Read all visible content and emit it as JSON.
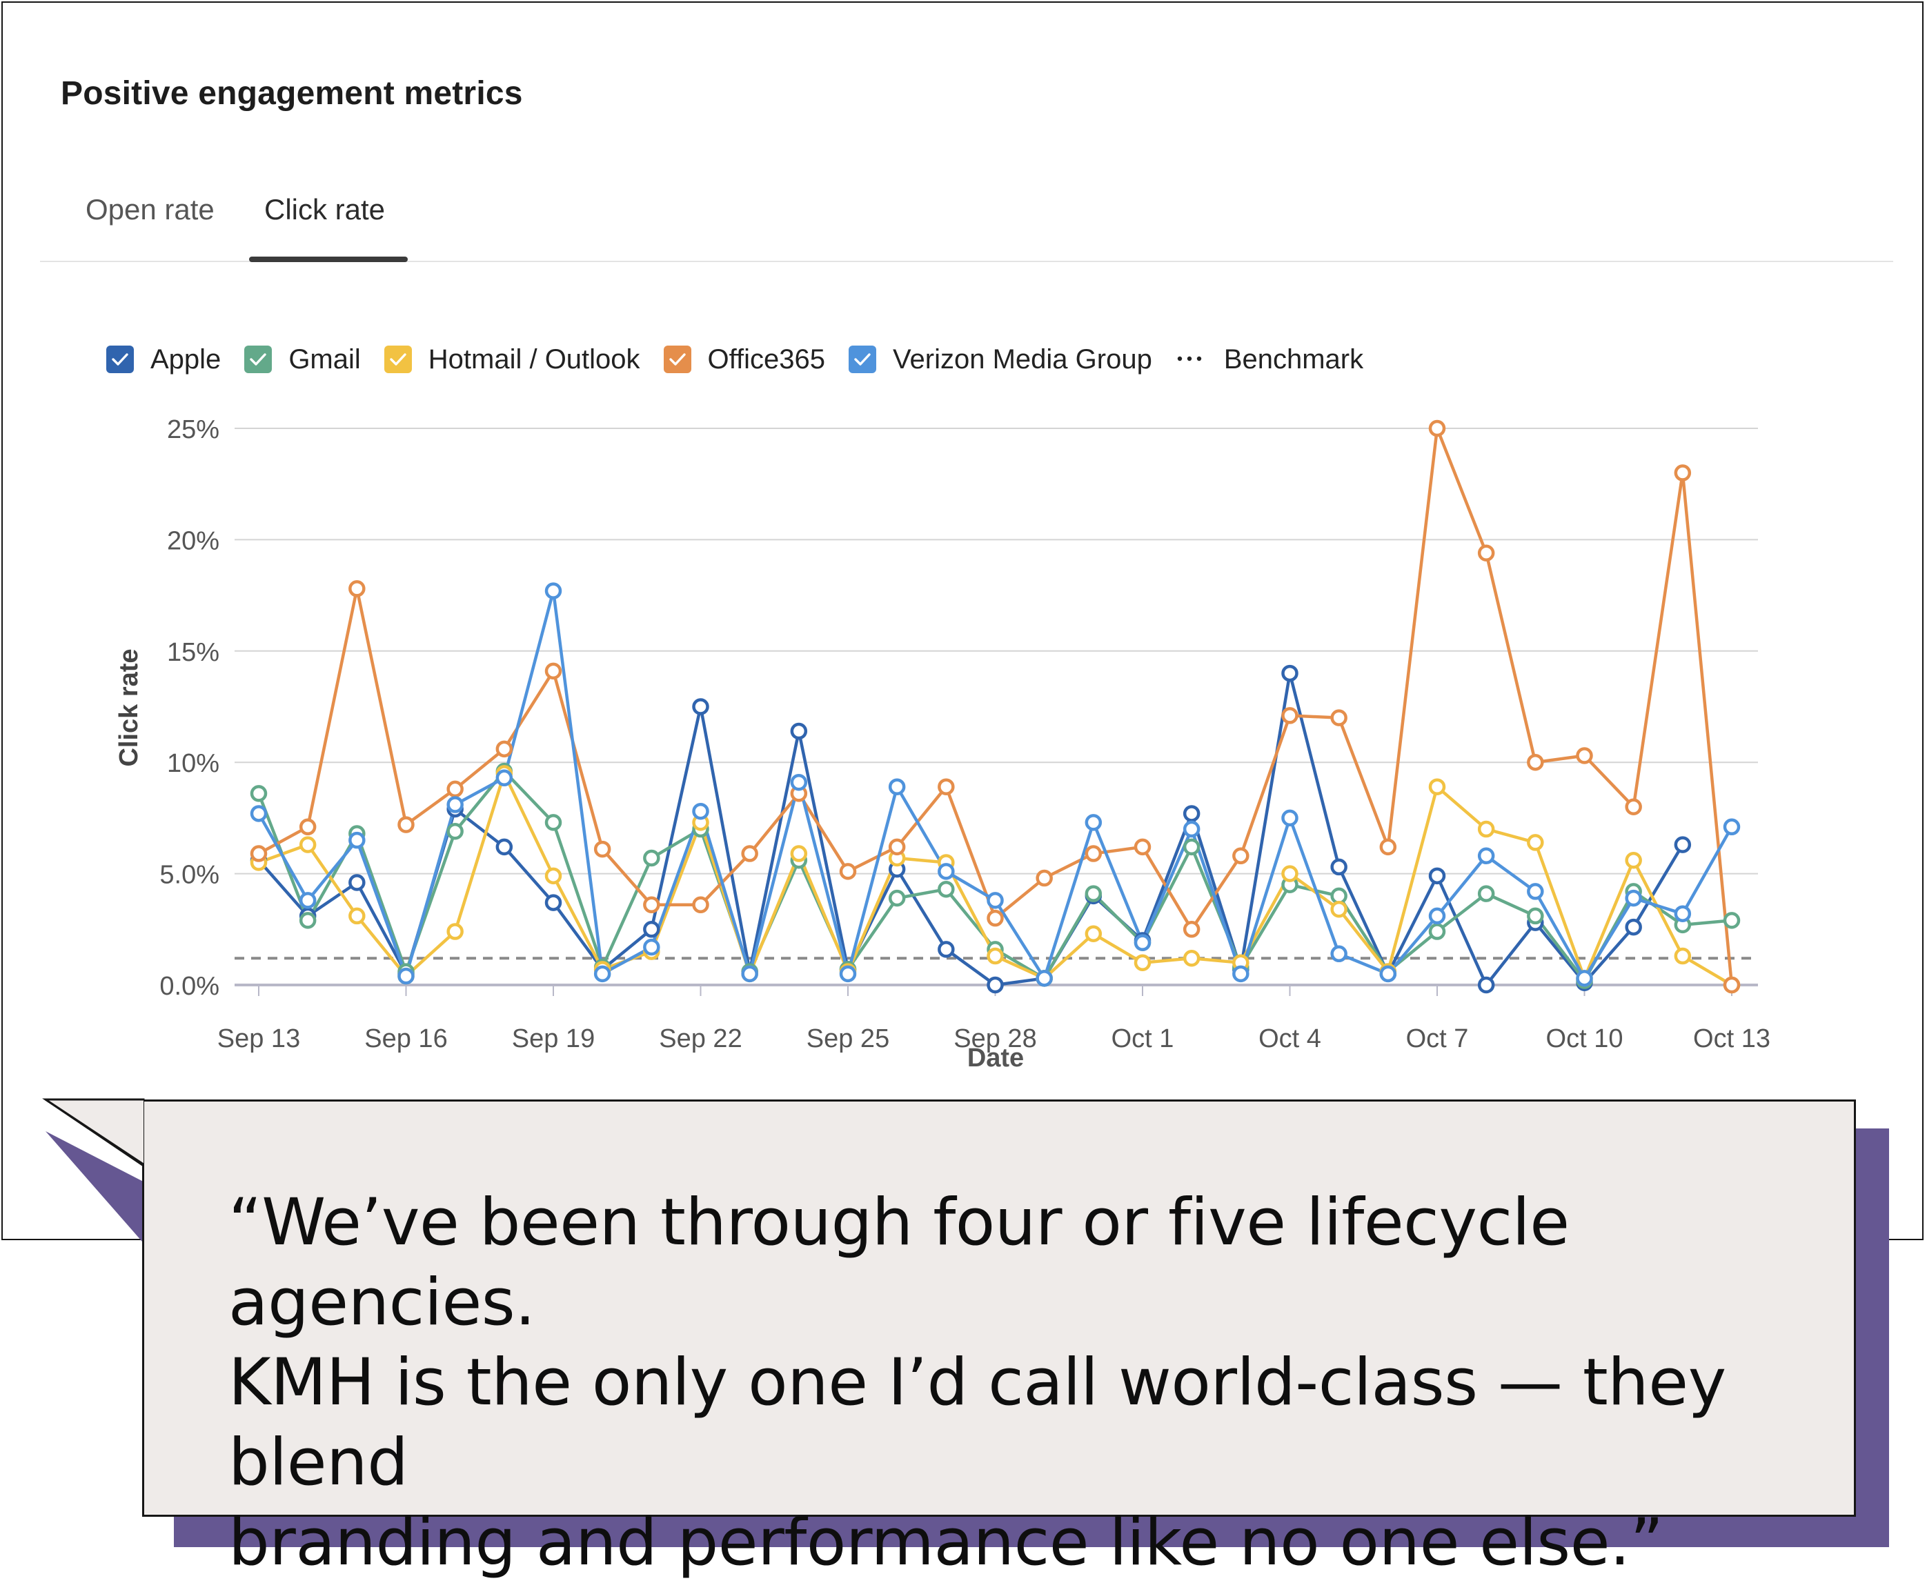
{
  "card": {
    "title": "Positive engagement metrics",
    "tabs": [
      {
        "label": "Open rate",
        "active": false
      },
      {
        "label": "Click rate",
        "active": true
      }
    ]
  },
  "legend": {
    "items": [
      {
        "label": "Apple",
        "color": "#3064ae",
        "checked": true
      },
      {
        "label": "Gmail",
        "color": "#63a98a",
        "checked": true
      },
      {
        "label": "Hotmail / Outlook",
        "color": "#f2c242",
        "checked": true
      },
      {
        "label": "Office365",
        "color": "#e58e4b",
        "checked": true
      },
      {
        "label": "Verizon Media Group",
        "color": "#4f93dc",
        "checked": true
      }
    ],
    "benchmark_label": "Benchmark",
    "benchmark_color": "#8a8a8a"
  },
  "chart_data": {
    "type": "line",
    "ylabel": "Click rate",
    "xlabel": "Date",
    "ylim": [
      0,
      25
    ],
    "y_ticks": [
      "0.0%",
      "5.0%",
      "10%",
      "15%",
      "20%",
      "25%"
    ],
    "x_tick_labels": [
      "Sep 13",
      "Sep 16",
      "Sep 19",
      "Sep 22",
      "Sep 25",
      "Sep 28",
      "Oct 1",
      "Oct 4",
      "Oct 7",
      "Oct 10",
      "Oct 13"
    ],
    "x": [
      "Sep 13",
      "Sep 14",
      "Sep 15",
      "Sep 16",
      "Sep 17",
      "Sep 18",
      "Sep 19",
      "Sep 20",
      "Sep 21",
      "Sep 22",
      "Sep 23",
      "Sep 24",
      "Sep 25",
      "Sep 26",
      "Sep 27",
      "Sep 28",
      "Sep 29",
      "Sep 30",
      "Oct 1",
      "Oct 2",
      "Oct 3",
      "Oct 4",
      "Oct 5",
      "Oct 6",
      "Oct 7",
      "Oct 8",
      "Oct 9",
      "Oct 10",
      "Oct 11",
      "Oct 12",
      "Oct 13"
    ],
    "benchmark": 1.2,
    "grid": true,
    "legend_position": "top-left",
    "series": [
      {
        "name": "Apple",
        "color": "#3064ae",
        "values": [
          5.6,
          3.1,
          4.6,
          0.5,
          7.9,
          6.2,
          3.7,
          0.7,
          2.5,
          12.5,
          0.6,
          11.4,
          0.7,
          5.2,
          1.6,
          0.0,
          0.3,
          4.0,
          2.0,
          7.7,
          0.7,
          14.0,
          5.3,
          0.5,
          4.9,
          0.0,
          2.8,
          0.1,
          2.6,
          6.3,
          null
        ]
      },
      {
        "name": "Gmail",
        "color": "#63a98a",
        "values": [
          8.6,
          2.9,
          6.8,
          0.6,
          6.9,
          9.6,
          7.3,
          0.8,
          5.7,
          7.0,
          0.6,
          5.6,
          0.7,
          3.9,
          4.3,
          1.6,
          0.3,
          4.1,
          1.9,
          6.2,
          0.8,
          4.5,
          4.0,
          0.6,
          2.4,
          4.1,
          3.1,
          0.2,
          4.2,
          2.7,
          2.9
        ]
      },
      {
        "name": "Hotmail / Outlook",
        "color": "#f2c242",
        "values": [
          5.5,
          6.3,
          3.1,
          0.4,
          2.4,
          9.5,
          4.9,
          0.7,
          1.5,
          7.3,
          0.5,
          5.9,
          0.6,
          5.7,
          5.5,
          1.3,
          0.3,
          2.3,
          1.0,
          1.2,
          1.0,
          5.0,
          3.4,
          0.6,
          8.9,
          7.0,
          6.4,
          0.3,
          5.6,
          1.3,
          0.0
        ]
      },
      {
        "name": "Office365",
        "color": "#e58e4b",
        "values": [
          5.9,
          7.1,
          17.8,
          7.2,
          8.8,
          10.6,
          14.1,
          6.1,
          3.6,
          3.6,
          5.9,
          8.6,
          5.1,
          6.2,
          8.9,
          3.0,
          4.8,
          5.9,
          6.2,
          2.5,
          5.8,
          12.1,
          12.0,
          6.2,
          25.0,
          19.4,
          10.0,
          10.3,
          8.0,
          23.0,
          0.0
        ]
      },
      {
        "name": "Verizon Media Group",
        "color": "#4f93dc",
        "values": [
          7.7,
          3.8,
          6.5,
          0.4,
          8.1,
          9.3,
          17.7,
          0.5,
          1.7,
          7.8,
          0.5,
          9.1,
          0.5,
          8.9,
          5.1,
          3.8,
          0.3,
          7.3,
          1.9,
          7.0,
          0.5,
          7.5,
          1.4,
          0.5,
          3.1,
          5.8,
          4.2,
          0.3,
          3.9,
          3.2,
          7.1
        ]
      }
    ]
  },
  "quote": {
    "lines": [
      "“We’ve been through four or five lifecycle agencies.",
      "KMH is the only one I’d call world-class — they blend",
      "branding and performance like no one else.”"
    ],
    "box_color": "#efebe9",
    "shadow_color": "#655792"
  }
}
